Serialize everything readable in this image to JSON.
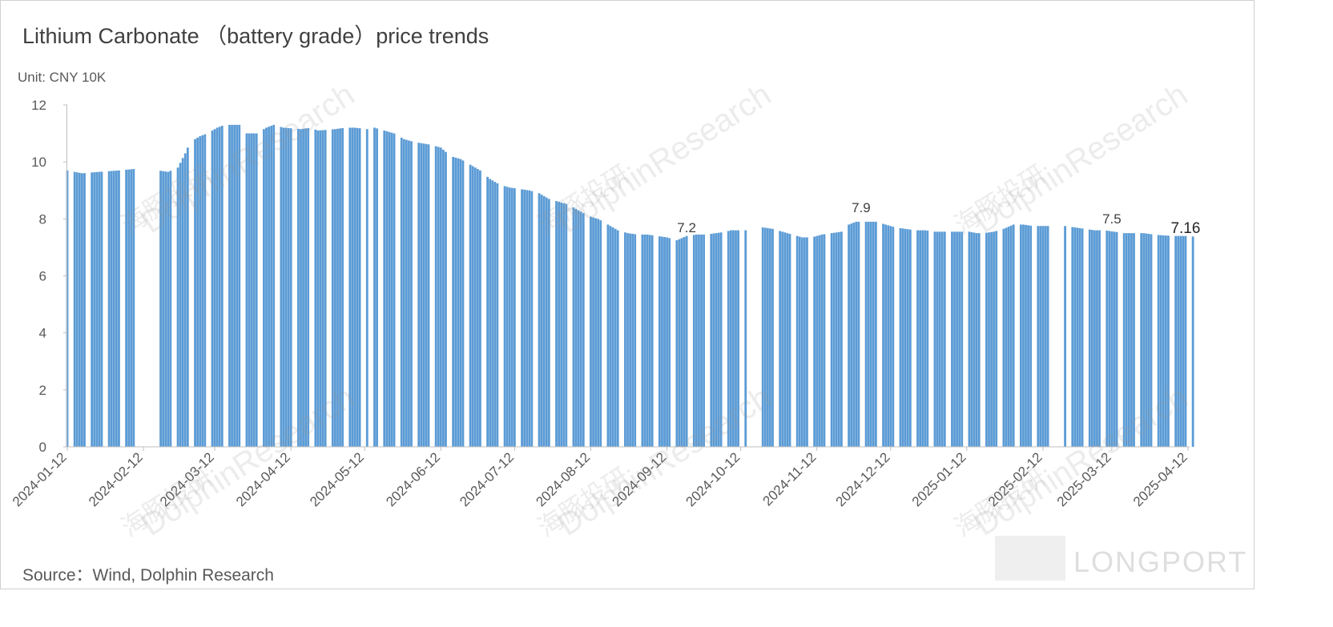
{
  "chart_data": {
    "type": "bar",
    "title": "Lithium Carbonate （battery grade）price trends",
    "unit_label": "Unit: CNY 10K",
    "source": "Source：Wind, Dolphin Research",
    "ylim": [
      0,
      12
    ],
    "yticks": [
      "0",
      "2",
      "4",
      "6",
      "8",
      "10",
      "12"
    ],
    "xticks": [
      "2024-01-12",
      "2024-02-12",
      "2024-03-12",
      "2024-04-12",
      "2024-05-12",
      "2024-06-12",
      "2024-07-12",
      "2024-08-12",
      "2024-09-12",
      "2024-10-12",
      "2024-11-12",
      "2024-12-12",
      "2025-01-12",
      "2025-02-12",
      "2025-03-12",
      "2025-04-12"
    ],
    "bar_color": "#5b9bd5",
    "grid": false,
    "legend": "none",
    "annotations": [
      {
        "x": "2024-09-20",
        "y": 7.2,
        "label": "7.2"
      },
      {
        "x": "2024-11-30",
        "y": 7.9,
        "label": "7.9"
      },
      {
        "x": "2025-03-12",
        "y": 7.5,
        "label": "7.5"
      },
      {
        "x": "2025-04-11",
        "y": 7.16,
        "label": "7.16"
      }
    ],
    "segments": [
      {
        "from": "2024-01-12",
        "to": "2024-02-08",
        "points": [
          [
            0,
            9.7
          ],
          [
            6,
            9.6
          ],
          [
            13,
            9.65
          ],
          [
            21,
            9.7
          ],
          [
            27,
            9.75
          ]
        ]
      },
      {
        "from": "2024-02-18",
        "to": "2024-05-13",
        "points": [
          [
            0,
            9.7
          ],
          [
            4,
            9.65
          ],
          [
            8,
            9.8
          ],
          [
            11,
            10.3
          ],
          [
            13,
            10.7
          ],
          [
            17,
            10.9
          ],
          [
            20,
            11.0
          ],
          [
            24,
            11.2
          ],
          [
            27,
            11.3
          ],
          [
            33,
            11.3
          ],
          [
            36,
            11.0
          ],
          [
            40,
            11.0
          ],
          [
            44,
            11.2
          ],
          [
            47,
            11.3
          ],
          [
            51,
            11.2
          ],
          [
            58,
            11.15
          ],
          [
            62,
            11.2
          ],
          [
            65,
            11.1
          ],
          [
            72,
            11.15
          ],
          [
            76,
            11.2
          ],
          [
            80,
            11.2
          ],
          [
            85,
            11.15
          ]
        ]
      },
      {
        "from": "2024-05-16",
        "to": "2024-10-14",
        "points": [
          [
            0,
            11.2
          ],
          [
            4,
            11.1
          ],
          [
            8,
            11.0
          ],
          [
            12,
            10.8
          ],
          [
            16,
            10.7
          ],
          [
            23,
            10.6
          ],
          [
            27,
            10.5
          ],
          [
            31,
            10.2
          ],
          [
            35,
            10.1
          ],
          [
            39,
            9.9
          ],
          [
            43,
            9.7
          ],
          [
            47,
            9.4
          ],
          [
            51,
            9.2
          ],
          [
            55,
            9.1
          ],
          [
            59,
            9.05
          ],
          [
            63,
            9.0
          ],
          [
            67,
            8.9
          ],
          [
            71,
            8.7
          ],
          [
            75,
            8.6
          ],
          [
            79,
            8.5
          ],
          [
            83,
            8.3
          ],
          [
            87,
            8.1
          ],
          [
            91,
            8.0
          ],
          [
            95,
            7.8
          ],
          [
            99,
            7.6
          ],
          [
            103,
            7.5
          ],
          [
            107,
            7.45
          ],
          [
            111,
            7.45
          ],
          [
            115,
            7.4
          ],
          [
            119,
            7.35
          ],
          [
            123,
            7.25
          ],
          [
            127,
            7.4
          ],
          [
            131,
            7.45
          ],
          [
            135,
            7.45
          ],
          [
            139,
            7.5
          ],
          [
            143,
            7.55
          ],
          [
            145,
            7.6
          ],
          [
            147,
            7.6
          ],
          [
            148,
            7.6
          ],
          [
            150,
            7.55
          ],
          [
            151,
            7.6
          ]
        ]
      },
      {
        "from": "2024-10-21",
        "to": "2025-02-14",
        "points": [
          [
            0,
            7.7
          ],
          [
            4,
            7.65
          ],
          [
            8,
            7.55
          ],
          [
            12,
            7.45
          ],
          [
            16,
            7.35
          ],
          [
            20,
            7.35
          ],
          [
            24,
            7.45
          ],
          [
            28,
            7.5
          ],
          [
            32,
            7.55
          ],
          [
            35,
            7.8
          ],
          [
            38,
            7.9
          ],
          [
            41,
            7.9
          ],
          [
            46,
            7.9
          ],
          [
            50,
            7.8
          ],
          [
            54,
            7.7
          ],
          [
            58,
            7.65
          ],
          [
            62,
            7.6
          ],
          [
            66,
            7.6
          ],
          [
            70,
            7.55
          ],
          [
            74,
            7.55
          ],
          [
            78,
            7.55
          ],
          [
            80,
            7.55
          ],
          [
            84,
            7.55
          ],
          [
            87,
            7.5
          ],
          [
            90,
            7.5
          ],
          [
            94,
            7.55
          ],
          [
            98,
            7.65
          ],
          [
            102,
            7.8
          ],
          [
            106,
            7.8
          ],
          [
            110,
            7.75
          ],
          [
            113,
            7.75
          ],
          [
            114,
            7.75
          ],
          [
            116,
            7.75
          ]
        ]
      },
      {
        "from": "2025-02-21",
        "to": "2025-04-14",
        "points": [
          [
            0,
            7.75
          ],
          [
            4,
            7.7
          ],
          [
            8,
            7.65
          ],
          [
            12,
            7.6
          ],
          [
            16,
            7.6
          ],
          [
            20,
            7.55
          ],
          [
            24,
            7.5
          ],
          [
            28,
            7.5
          ],
          [
            32,
            7.5
          ],
          [
            36,
            7.45
          ],
          [
            40,
            7.42
          ],
          [
            44,
            7.4
          ],
          [
            47,
            7.4
          ],
          [
            48,
            7.4
          ],
          [
            50,
            7.4
          ],
          [
            52,
            7.38
          ]
        ]
      }
    ]
  },
  "watermarks": {
    "cn": "海豚投研",
    "en": "DolphinResearch",
    "brand": "LONGPORT"
  }
}
